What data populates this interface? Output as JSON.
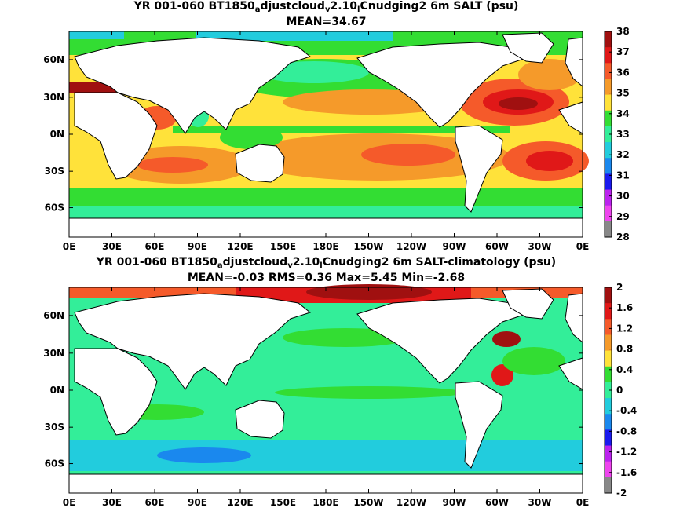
{
  "chart_data": [
    {
      "type": "heatmap",
      "title_parts": [
        "YR 001-060 BT1850",
        "a",
        "djustcloud",
        "v",
        "2.10",
        "l",
        "Cnudging2 6m SALT (psu)"
      ],
      "subtitle": "MEAN=34.67",
      "x_ticks": [
        "0E",
        "30E",
        "60E",
        "90E",
        "120E",
        "150E",
        "180E",
        "150W",
        "120W",
        "90W",
        "60W",
        "30W",
        "0E"
      ],
      "y_ticks": [
        "60N",
        "30N",
        "0N",
        "30S",
        "60S"
      ],
      "colorbar_ticks": [
        "38",
        "37",
        "36",
        "35",
        "34",
        "33",
        "32",
        "31",
        "30",
        "29",
        "28"
      ],
      "colorbar_colors": [
        "#a01010",
        "#e01818",
        "#f55a2a",
        "#f59a2a",
        "#ffe23a",
        "#33dd33",
        "#33ee99",
        "#22ccdd",
        "#1a88ee",
        "#1a1aee",
        "#bb22ee",
        "#ee44ee",
        "#888888"
      ],
      "value_range": [
        28,
        38
      ],
      "mean": 34.67,
      "units": "psu"
    },
    {
      "type": "heatmap",
      "title_parts": [
        "YR 001-060 BT1850",
        "a",
        "djustcloud",
        "v",
        "2.10",
        "l",
        "Cnudging2 6m SALT-climatology (psu)"
      ],
      "subtitle": "MEAN=-0.03   RMS=0.36   Max=5.45   Min=-2.68",
      "x_ticks": [
        "0E",
        "30E",
        "60E",
        "90E",
        "120E",
        "150E",
        "180E",
        "150W",
        "120W",
        "90W",
        "60W",
        "30W",
        "0E"
      ],
      "y_ticks": [
        "60N",
        "30N",
        "0N",
        "30S",
        "60S"
      ],
      "colorbar_ticks": [
        "2",
        "1.6",
        "1.2",
        "0.8",
        "0.4",
        "0",
        "-0.4",
        "-0.8",
        "-1.2",
        "-1.6",
        "-2"
      ],
      "colorbar_colors": [
        "#a01010",
        "#e01818",
        "#f55a2a",
        "#f59a2a",
        "#ffe23a",
        "#33dd33",
        "#33ee99",
        "#22ccdd",
        "#1a88ee",
        "#1a1aee",
        "#bb22ee",
        "#ee44ee",
        "#888888"
      ],
      "value_range": [
        -2,
        2
      ],
      "mean": -0.03,
      "rms": 0.36,
      "max": 5.45,
      "min": -2.68,
      "units": "psu"
    }
  ]
}
